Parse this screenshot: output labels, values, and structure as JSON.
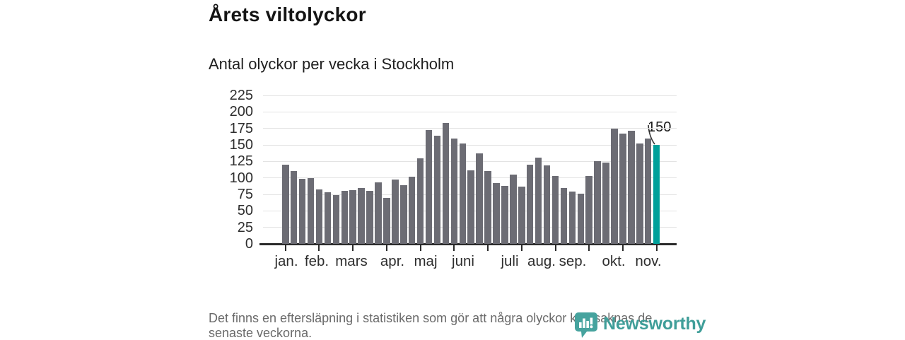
{
  "header": {
    "title": "Årets viltolyckor",
    "subtitle": "Antal olyckor per vecka i Stockholm"
  },
  "chart_data": {
    "type": "bar",
    "title": "Årets viltolyckor",
    "subtitle": "Antal olyckor per vecka i Stockholm",
    "x_unit": "vecka",
    "x_tick_labels": [
      "jan.",
      "feb.",
      "mars",
      "apr.",
      "maj",
      "juni",
      "juli",
      "aug.",
      "sep.",
      "okt.",
      "nov."
    ],
    "values": [
      120,
      110,
      99,
      100,
      82,
      78,
      74,
      80,
      81,
      85,
      80,
      93,
      70,
      97,
      89,
      102,
      130,
      172,
      164,
      183,
      160,
      152,
      111,
      137,
      110,
      92,
      88,
      105,
      87,
      120,
      131,
      119,
      103,
      85,
      79,
      76,
      103,
      125,
      123,
      175,
      167,
      171,
      152,
      160,
      150
    ],
    "yticks": [
      0,
      25,
      50,
      75,
      100,
      125,
      150,
      175,
      200,
      225
    ],
    "ylim": [
      0,
      225
    ],
    "grid": true,
    "legend_position": "none",
    "bar_color": "#6c6c74",
    "highlight_color": "#00a09a",
    "highlight_index": 44,
    "highlight_label": "150",
    "axis_color": "#2b2b2b",
    "gridline_color": "#e3e3e3"
  },
  "footer": {
    "note": "Det finns en eftersläpning i statistiken som gör att några olyckor kan saknas de senaste veckorna."
  },
  "branding": {
    "logo_text": "Newsworthy",
    "logo_icon": "newsworthy-bubble-chart-icon",
    "logo_color": "#3f9e99"
  }
}
